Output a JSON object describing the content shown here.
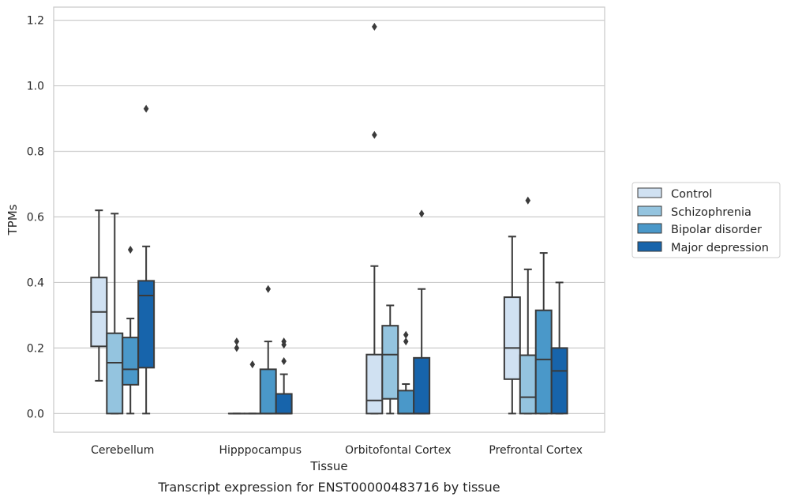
{
  "caption": "Transcript expression for ENST00000483716 by tissue",
  "chart_data": {
    "type": "boxplot",
    "xlabel": "Tissue",
    "ylabel": "TPMs",
    "ylim": [
      -0.057,
      1.24
    ],
    "yticks": [
      "0.0",
      "0.2",
      "0.4",
      "0.6",
      "0.8",
      "1.0",
      "1.2"
    ],
    "ytick_values": [
      0.0,
      0.2,
      0.4,
      0.6,
      0.8,
      1.0,
      1.2
    ],
    "grid": true,
    "legend_position": "center-right, outside",
    "categories": [
      "Cerebellum",
      "Hipppocampus",
      "Orbitofontal Cortex",
      "Prefrontal Cortex"
    ],
    "series": [
      {
        "name": "Control",
        "color": "#d0e1f2",
        "boxes": [
          {
            "min": 0.1,
            "q1": 0.205,
            "median": 0.31,
            "q3": 0.415,
            "max": 0.62,
            "outliers": []
          },
          {
            "min": 0.0,
            "q1": 0.0,
            "median": 0.0,
            "q3": 0.0,
            "max": 0.0,
            "outliers": [
              0.2,
              0.22
            ]
          },
          {
            "min": 0.0,
            "q1": 0.0,
            "median": 0.04,
            "q3": 0.18,
            "max": 0.45,
            "outliers": [
              0.85,
              1.18
            ]
          },
          {
            "min": 0.0,
            "q1": 0.105,
            "median": 0.2,
            "q3": 0.355,
            "max": 0.54,
            "outliers": []
          }
        ]
      },
      {
        "name": "Schizophrenia",
        "color": "#94c4df",
        "boxes": [
          {
            "min": 0.0,
            "q1": 0.0,
            "median": 0.155,
            "q3": 0.245,
            "max": 0.61,
            "outliers": []
          },
          {
            "min": 0.0,
            "q1": 0.0,
            "median": 0.0,
            "q3": 0.0,
            "max": 0.0,
            "outliers": [
              0.15
            ]
          },
          {
            "min": 0.0,
            "q1": 0.045,
            "median": 0.18,
            "q3": 0.268,
            "max": 0.33,
            "outliers": []
          },
          {
            "min": 0.0,
            "q1": 0.0,
            "median": 0.05,
            "q3": 0.178,
            "max": 0.44,
            "outliers": [
              0.65
            ]
          }
        ]
      },
      {
        "name": "Bipolar disorder",
        "color": "#4a98c9",
        "boxes": [
          {
            "min": 0.0,
            "q1": 0.088,
            "median": 0.135,
            "q3": 0.232,
            "max": 0.29,
            "outliers": [
              0.5
            ]
          },
          {
            "min": 0.0,
            "q1": 0.0,
            "median": 0.0,
            "q3": 0.135,
            "max": 0.22,
            "outliers": [
              0.38
            ]
          },
          {
            "min": 0.0,
            "q1": 0.0,
            "median": 0.0,
            "q3": 0.07,
            "max": 0.09,
            "outliers": [
              0.22,
              0.24
            ]
          },
          {
            "min": 0.0,
            "q1": 0.0,
            "median": 0.165,
            "q3": 0.315,
            "max": 0.49,
            "outliers": []
          }
        ]
      },
      {
        "name": "Major depression",
        "color": "#1764ab",
        "boxes": [
          {
            "min": 0.0,
            "q1": 0.14,
            "median": 0.36,
            "q3": 0.405,
            "max": 0.51,
            "outliers": [
              0.93
            ]
          },
          {
            "min": 0.0,
            "q1": 0.0,
            "median": 0.0,
            "q3": 0.06,
            "max": 0.12,
            "outliers": [
              0.16,
              0.21,
              0.22
            ]
          },
          {
            "min": 0.0,
            "q1": 0.0,
            "median": 0.0,
            "q3": 0.17,
            "max": 0.38,
            "outliers": [
              0.61
            ]
          },
          {
            "min": 0.0,
            "q1": 0.0,
            "median": 0.13,
            "q3": 0.2,
            "max": 0.4,
            "outliers": []
          }
        ]
      }
    ]
  }
}
